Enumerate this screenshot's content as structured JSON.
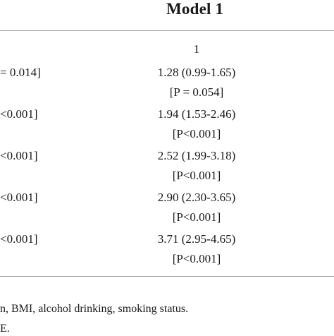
{
  "header": {
    "model_title": "Model 1"
  },
  "subheader": {
    "level": "1"
  },
  "rows": [
    {
      "left": "= 0.014]",
      "estimate": "1.28 (0.99-1.65)",
      "p": "[P = 0.054]"
    },
    {
      "left": "<0.001]",
      "estimate": "1.94 (1.53-2.46)",
      "p": "[P<0.001]"
    },
    {
      "left": "<0.001]",
      "estimate": "2.52 (1.99-3.18)",
      "p": "[P<0.001]"
    },
    {
      "left": "<0.001]",
      "estimate": "2.90 (2.30-3.65)",
      "p": "[P<0.001]"
    },
    {
      "left": "<0.001]",
      "estimate": "3.71 (2.95-4.65)",
      "p": "[P<0.001]"
    }
  ],
  "footnote": {
    "line1": "n, BMI, alcohol drinking, smoking status.",
    "line2": "E."
  }
}
